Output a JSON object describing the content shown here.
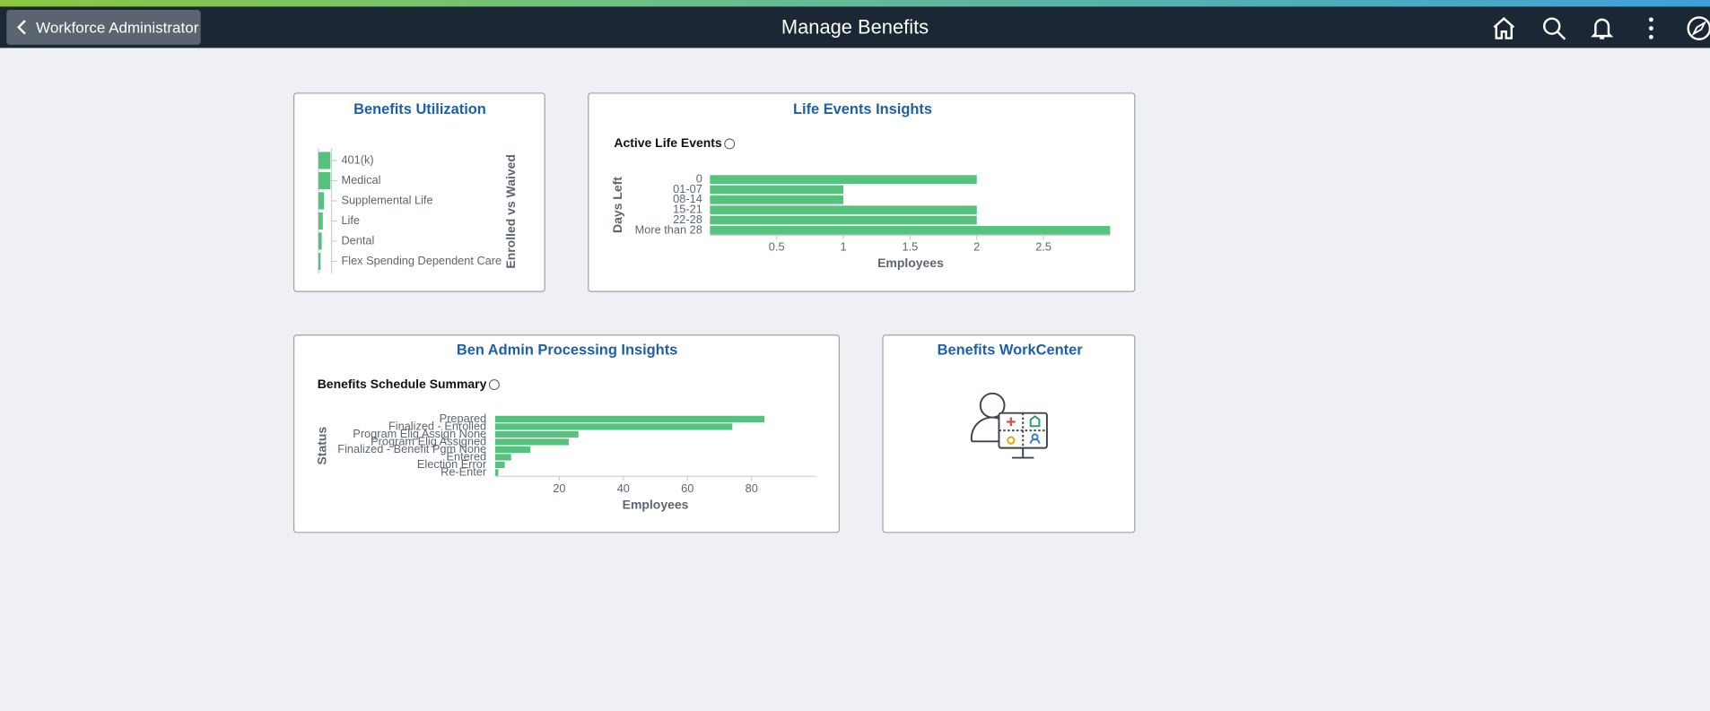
{
  "header": {
    "back_button": "Workforce Administrator",
    "title": "Manage Benefits"
  },
  "tiles": [
    {
      "title": "Benefits Utilization",
      "chart": {
        "type": "bar",
        "axis_label": "Enrolled vs Waived",
        "color": "#55c27d",
        "categories": [
          "401(k)",
          "Medical",
          "Supplemental Life",
          "Life",
          "Dental",
          "Flex Spending Dependent Care"
        ],
        "values": [
          11,
          11,
          5,
          4,
          3,
          2
        ]
      }
    },
    {
      "title": "Life Events Insights",
      "chart": {
        "type": "bar",
        "subtitle": "Active Life Events",
        "x_label": "Employees",
        "y_label": "Days Left",
        "color": "#55c27d",
        "categories": [
          "0",
          "01-07",
          "08-14",
          "15-21",
          "22-28",
          "More than 28"
        ],
        "values": [
          2,
          1,
          1,
          2,
          2,
          3
        ],
        "xlim": [
          0,
          3
        ],
        "xticks": [
          0.5,
          1,
          1.5,
          2,
          2.5
        ]
      }
    },
    {
      "title": "Ben Admin Processing Insights",
      "chart": {
        "type": "bar",
        "subtitle": "Benefits Schedule Summary",
        "x_label": "Employees",
        "y_label": "Status",
        "color": "#55c27d",
        "categories": [
          "Prepared",
          "Finalized - Enrolled",
          "Program Elig Assign None",
          "Program Elig Assigned",
          "Finalized - Benefit Pgm None",
          "Entered",
          "Election Error",
          "Re-Enter"
        ],
        "values": [
          84,
          74,
          26,
          23,
          11,
          5,
          3,
          1
        ],
        "xlim": [
          0,
          100
        ],
        "xticks": [
          20,
          40,
          60,
          80
        ]
      }
    },
    {
      "title": "Benefits WorkCenter"
    }
  ]
}
